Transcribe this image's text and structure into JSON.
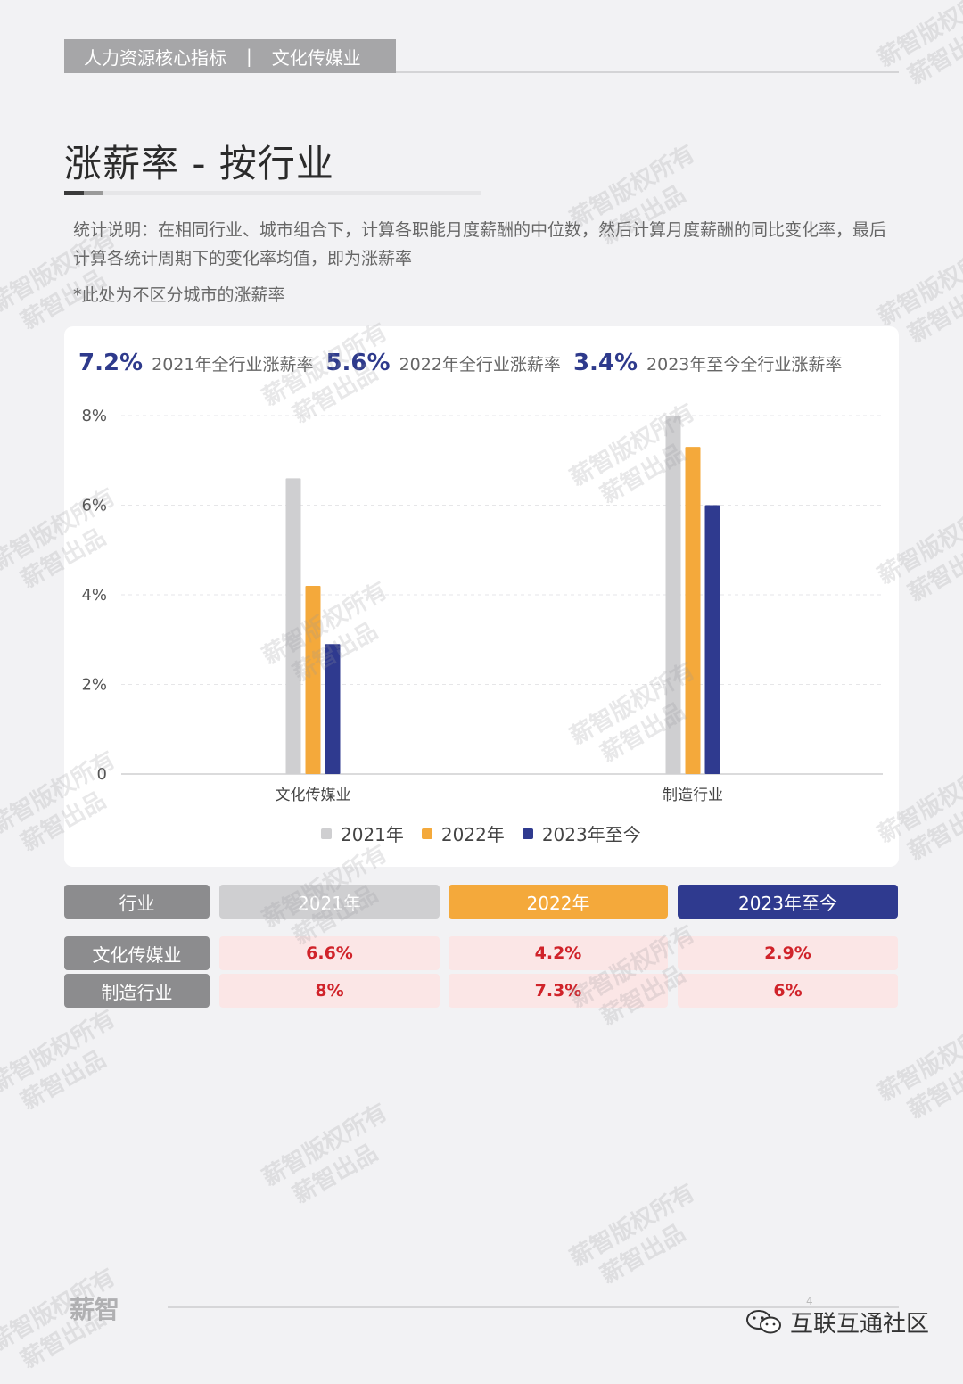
{
  "header": {
    "section": "人力资源核心指标",
    "separator": "|",
    "industry": "文化传媒业"
  },
  "title": "涨薪率 - 按行业",
  "description": "统计说明：在相同行业、城市组合下，计算各职能月度薪酬的中位数，然后计算月度薪酬的同比变化率，最后计算各统计周期下的变化率均值，即为涨薪率",
  "note": "*此处为不区分城市的涨薪率",
  "kpis": [
    {
      "value": "7.2%",
      "label": "2021年全行业涨薪率"
    },
    {
      "value": "5.6%",
      "label": "2022年全行业涨薪率"
    },
    {
      "value": "3.4%",
      "label": "2023年至今全行业涨薪率"
    }
  ],
  "chart_data": {
    "type": "bar",
    "categories": [
      "文化传媒业",
      "制造行业"
    ],
    "series": [
      {
        "name": "2021年",
        "color": "#cfcfd1",
        "values": [
          6.6,
          8.0
        ]
      },
      {
        "name": "2022年",
        "color": "#f4a93b",
        "values": [
          4.2,
          7.3
        ]
      },
      {
        "name": "2023年至今",
        "color": "#2f3a8f",
        "values": [
          2.9,
          6.0
        ]
      }
    ],
    "yticks": [
      "0",
      "2%",
      "4%",
      "6%",
      "8%"
    ],
    "ylim": [
      0,
      8
    ],
    "grid": true,
    "legend": "bottom"
  },
  "table": {
    "headers": [
      "行业",
      "2021年",
      "2022年",
      "2023年至今"
    ],
    "rows": [
      {
        "label": "文化传媒业",
        "values": [
          "6.6%",
          "4.2%",
          "2.9%"
        ]
      },
      {
        "label": "制造行业",
        "values": [
          "8%",
          "7.3%",
          "6%"
        ]
      }
    ]
  },
  "footer": {
    "brand": "薪智",
    "page_number": "4",
    "source": "互联互通社区"
  },
  "watermark": {
    "line1": "薪智版权所有",
    "line2": "薪智出品"
  }
}
